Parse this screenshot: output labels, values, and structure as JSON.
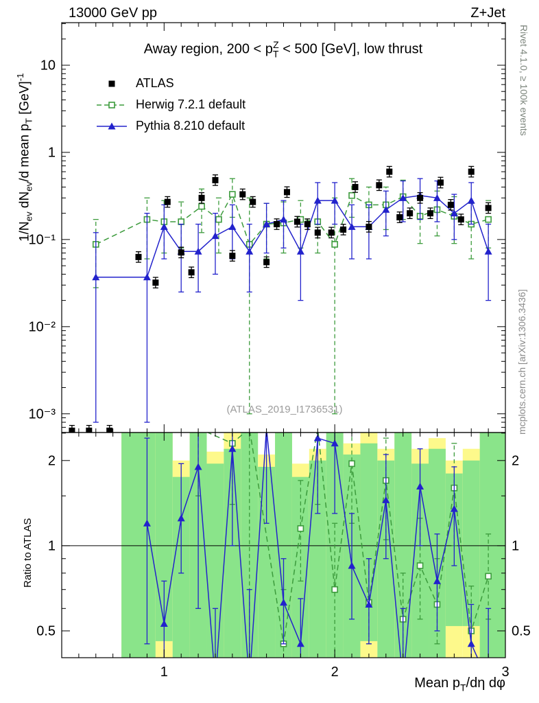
{
  "page": {
    "header_left": "13000 GeV pp",
    "header_right": "Z+Jet",
    "title_parts": [
      {
        "t": "Away region, 200 < p"
      },
      {
        "t": "T",
        "s": "sub"
      },
      {
        "t": "Z",
        "s": "sup"
      },
      {
        "t": " < 500 [GeV], low thrust"
      }
    ],
    "ylabel_main_parts": [
      {
        "t": "1/N"
      },
      {
        "t": "ev",
        "s": "sub"
      },
      {
        "t": " dN"
      },
      {
        "t": "ev",
        "s": "sub"
      },
      {
        "t": "/d mean p"
      },
      {
        "t": "T",
        "s": "sub"
      },
      {
        "t": " [GeV]"
      },
      {
        "t": "-1",
        "s": "sup"
      }
    ],
    "xlabel_parts": [
      {
        "t": "Mean p"
      },
      {
        "t": "T",
        "s": "sub"
      },
      {
        "t": "/dη dφ"
      }
    ],
    "watermark": "(ATLAS_2019_I1736531)",
    "rivet_note": "Rivet 4.1.0, ≥ 100k events",
    "mcplots_note": "mcplots.cern.ch [arXiv:1306.3436]"
  },
  "chart_data": {
    "type": "line",
    "title": "Away region, 200 < pT(Z) < 500 [GeV], low thrust",
    "xlabel": "Mean pT/dη dφ",
    "layout": {
      "grid": false,
      "y_log": true,
      "legend_position": "top-left",
      "ratio_panel": true
    },
    "xlim": [
      0.4,
      3.0
    ],
    "x_minor_step": 0.1,
    "xticks": [
      {
        "v": 1,
        "l": "1"
      },
      {
        "v": 2,
        "l": "2"
      },
      {
        "v": 3,
        "l": "3"
      }
    ],
    "main": {
      "ylabel": "1/Nev dNev/d mean pT [GeV]^-1",
      "ylim": [
        0.00061,
        30.8
      ],
      "yticks": [
        {
          "v": 10,
          "l": "10"
        },
        {
          "v": 1,
          "l": "1"
        },
        {
          "v": 0.1,
          "l": "10⁻¹"
        },
        {
          "v": 0.01,
          "l": "10⁻²"
        },
        {
          "v": 0.001,
          "l": "10⁻³"
        }
      ],
      "series": [
        {
          "name": "ATLAS",
          "color": "#000000",
          "marker": "square-filled",
          "line": null,
          "err_frac": 0.15,
          "points": [
            [
              0.46,
              0.00064
            ],
            [
              0.56,
              0.00064
            ],
            [
              0.68,
              0.00064
            ],
            [
              0.85,
              0.063
            ],
            [
              0.95,
              0.032
            ],
            [
              1.02,
              0.27
            ],
            [
              1.1,
              0.071
            ],
            [
              1.16,
              0.042
            ],
            [
              1.22,
              0.3
            ],
            [
              1.3,
              0.48
            ],
            [
              1.4,
              0.065
            ],
            [
              1.46,
              0.33
            ],
            [
              1.52,
              0.27
            ],
            [
              1.6,
              0.055
            ],
            [
              1.66,
              0.15
            ],
            [
              1.72,
              0.35
            ],
            [
              1.78,
              0.16
            ],
            [
              1.84,
              0.15
            ],
            [
              1.9,
              0.12
            ],
            [
              1.98,
              0.12
            ],
            [
              2.05,
              0.13
            ],
            [
              2.12,
              0.4
            ],
            [
              2.2,
              0.14
            ],
            [
              2.26,
              0.42
            ],
            [
              2.32,
              0.6
            ],
            [
              2.38,
              0.18
            ],
            [
              2.44,
              0.2
            ],
            [
              2.5,
              0.3
            ],
            [
              2.56,
              0.2
            ],
            [
              2.62,
              0.45
            ],
            [
              2.68,
              0.25
            ],
            [
              2.74,
              0.17
            ],
            [
              2.8,
              0.6
            ],
            [
              2.9,
              0.23
            ]
          ]
        },
        {
          "name": "Herwig 7.2.1 default",
          "color": "#3c9b3c",
          "marker": "square-open",
          "line": "dashed",
          "points": [
            [
              0.6,
              0.088,
              0.028,
              0.17
            ],
            [
              0.9,
              0.17,
              0.06,
              0.3
            ],
            [
              1.0,
              0.16,
              0.07,
              0.28
            ],
            [
              1.1,
              0.16,
              0.08,
              0.27
            ],
            [
              1.22,
              0.24,
              0.12,
              0.38
            ],
            [
              1.32,
              0.17,
              0.07,
              0.3
            ],
            [
              1.4,
              0.33,
              0.18,
              0.5
            ],
            [
              1.5,
              0.088,
              0.001,
              0.3
            ],
            [
              1.6,
              0.15,
              0.06,
              0.26
            ],
            [
              1.7,
              0.155,
              0.07,
              0.27
            ],
            [
              1.8,
              0.17,
              0.08,
              0.28
            ],
            [
              1.9,
              0.16,
              0.07,
              0.27
            ],
            [
              2.0,
              0.088,
              0.001,
              0.3
            ],
            [
              2.1,
              0.32,
              0.18,
              0.5
            ],
            [
              2.2,
              0.25,
              0.13,
              0.4
            ],
            [
              2.3,
              0.25,
              0.13,
              0.4
            ],
            [
              2.4,
              0.31,
              0.17,
              0.48
            ],
            [
              2.5,
              0.185,
              0.09,
              0.31
            ],
            [
              2.6,
              0.22,
              0.11,
              0.36
            ],
            [
              2.7,
              0.185,
              0.09,
              0.31
            ],
            [
              2.8,
              0.15,
              0.06,
              0.26
            ],
            [
              2.9,
              0.17,
              0.08,
              0.28
            ]
          ]
        },
        {
          "name": "Pythia 8.210 default",
          "color": "#2222cc",
          "marker": "triangle-filled",
          "line": "solid",
          "points": [
            [
              0.6,
              0.037,
              0.0008,
              0.12
            ],
            [
              0.9,
              0.037,
              0.0008,
              0.2
            ],
            [
              1.0,
              0.14,
              0.06,
              0.25
            ],
            [
              1.1,
              0.073,
              0.025,
              0.15
            ],
            [
              1.2,
              0.073,
              0.025,
              0.15
            ],
            [
              1.3,
              0.11,
              0.04,
              0.2
            ],
            [
              1.4,
              0.14,
              0.06,
              0.25
            ],
            [
              1.5,
              0.073,
              0.025,
              0.15
            ],
            [
              1.6,
              0.15,
              0.07,
              0.26
            ],
            [
              1.7,
              0.17,
              0.08,
              0.28
            ],
            [
              1.8,
              0.073,
              0.02,
              0.15
            ],
            [
              1.9,
              0.28,
              0.15,
              0.45
            ],
            [
              2.0,
              0.28,
              0.15,
              0.45
            ],
            [
              2.1,
              0.14,
              0.06,
              0.25
            ],
            [
              2.2,
              0.14,
              0.06,
              0.25
            ],
            [
              2.3,
              0.22,
              0.11,
              0.36
            ],
            [
              2.4,
              0.3,
              0.16,
              0.47
            ],
            [
              2.5,
              0.32,
              0.17,
              0.5
            ],
            [
              2.6,
              0.3,
              0.16,
              0.47
            ],
            [
              2.7,
              0.2,
              0.1,
              0.33
            ],
            [
              2.8,
              0.28,
              0.15,
              0.45
            ],
            [
              2.9,
              0.073,
              0.02,
              0.15
            ]
          ]
        }
      ]
    },
    "ratio": {
      "ylabel": "Ratio to ATLAS",
      "ylim": [
        0.402,
        2.512
      ],
      "baseline": 1,
      "yticks": [
        {
          "v": 0.5,
          "l": "0.5"
        },
        {
          "v": 1,
          "l": "1"
        },
        {
          "v": 2,
          "l": "2"
        }
      ],
      "yticks_minor": [
        0.6,
        0.7,
        0.8,
        0.9,
        1.5,
        2.5
      ],
      "band_colors": {
        "outer": "#fdf98b",
        "inner": "#8ae48a"
      },
      "bands": [
        [
          0.75,
          0.95,
          0.4,
          2.512,
          0.4,
          2.512
        ],
        [
          0.95,
          1.05,
          0.4,
          2.512,
          0.46,
          2.512
        ],
        [
          1.05,
          1.15,
          0.4,
          2.0,
          0.4,
          1.75
        ],
        [
          1.15,
          1.25,
          0.4,
          2.512,
          0.4,
          2.512
        ],
        [
          1.25,
          1.35,
          0.4,
          2.15,
          0.4,
          1.95
        ],
        [
          1.35,
          1.45,
          0.4,
          2.512,
          0.4,
          2.2
        ],
        [
          1.45,
          1.55,
          0.4,
          2.512,
          0.4,
          2.512
        ],
        [
          1.55,
          1.65,
          0.4,
          2.1,
          0.4,
          1.9
        ],
        [
          1.65,
          1.75,
          0.4,
          2.512,
          0.4,
          2.512
        ],
        [
          1.75,
          1.85,
          0.4,
          1.95,
          0.4,
          1.75
        ],
        [
          1.85,
          1.95,
          0.4,
          2.2,
          0.4,
          2.0
        ],
        [
          1.95,
          2.05,
          0.4,
          2.512,
          0.4,
          2.512
        ],
        [
          2.05,
          2.15,
          0.4,
          2.3,
          0.4,
          2.1
        ],
        [
          2.15,
          2.25,
          0.4,
          2.512,
          0.46,
          2.3
        ],
        [
          2.25,
          2.35,
          0.4,
          2.2,
          0.4,
          2.0
        ],
        [
          2.35,
          2.45,
          0.4,
          2.512,
          0.4,
          2.512
        ],
        [
          2.45,
          2.55,
          0.4,
          2.2,
          0.4,
          1.95
        ],
        [
          2.55,
          2.65,
          0.4,
          2.4,
          0.4,
          2.2
        ],
        [
          2.65,
          2.75,
          0.4,
          2.0,
          0.52,
          1.8
        ],
        [
          2.75,
          2.85,
          0.4,
          2.2,
          0.52,
          2.0
        ],
        [
          2.85,
          3.0,
          0.4,
          2.512,
          0.4,
          2.512
        ]
      ],
      "series": [
        {
          "name": "Herwig 7.2.1 default (ratio)",
          "color": "#3c9b3c",
          "marker": "square-open",
          "line": "dashed",
          "points": [
            [
              1.2,
              2.6,
              1.5,
              2.6
            ],
            [
              1.4,
              2.3,
              1.4,
              2.6
            ],
            [
              1.5,
              2.6,
              0.35,
              2.6
            ],
            [
              1.7,
              0.45,
              0.4,
              0.7
            ],
            [
              1.8,
              1.15,
              0.75,
              1.7
            ],
            [
              1.9,
              2.6,
              1.4,
              2.6
            ],
            [
              2.0,
              0.7,
              0.4,
              1.2
            ],
            [
              2.1,
              1.95,
              1.2,
              2.6
            ],
            [
              2.2,
              0.63,
              0.45,
              0.9
            ],
            [
              2.3,
              1.7,
              1.05,
              2.4
            ],
            [
              2.4,
              0.55,
              0.4,
              0.8
            ],
            [
              2.5,
              0.85,
              0.55,
              1.25
            ],
            [
              2.6,
              0.62,
              0.45,
              0.9
            ],
            [
              2.7,
              1.6,
              1.0,
              2.3
            ],
            [
              2.8,
              0.5,
              0.4,
              0.72
            ],
            [
              2.9,
              0.78,
              0.55,
              1.1
            ]
          ]
        },
        {
          "name": "Pythia 8.210 default (ratio)",
          "color": "#2222cc",
          "marker": "triangle-filled",
          "line": "solid",
          "points": [
            [
              0.9,
              1.2,
              0.45,
              2.4
            ],
            [
              1.0,
              0.53,
              0.38,
              0.75
            ],
            [
              1.1,
              1.25,
              0.8,
              1.95
            ],
            [
              1.2,
              1.9,
              0.6,
              2.6
            ],
            [
              1.3,
              0.33,
              0.33,
              0.6
            ],
            [
              1.4,
              2.2,
              1.0,
              2.6
            ],
            [
              1.5,
              0.33,
              0.33,
              0.7
            ],
            [
              1.6,
              2.6,
              1.2,
              2.6
            ],
            [
              1.7,
              0.63,
              0.45,
              0.9
            ],
            [
              1.8,
              0.45,
              0.33,
              0.65
            ],
            [
              1.9,
              2.4,
              1.3,
              2.6
            ],
            [
              2.0,
              2.3,
              1.3,
              2.6
            ],
            [
              2.1,
              0.85,
              0.55,
              1.3
            ],
            [
              2.2,
              0.62,
              0.45,
              0.9
            ],
            [
              2.3,
              1.45,
              0.9,
              2.1
            ],
            [
              2.4,
              0.33,
              0.33,
              0.6
            ],
            [
              2.5,
              1.62,
              1.0,
              2.2
            ],
            [
              2.6,
              0.75,
              0.5,
              1.1
            ],
            [
              2.7,
              1.35,
              0.85,
              1.9
            ],
            [
              2.8,
              0.45,
              0.35,
              0.62
            ],
            [
              2.9,
              0.33,
              0.33,
              0.6
            ]
          ]
        }
      ]
    }
  }
}
